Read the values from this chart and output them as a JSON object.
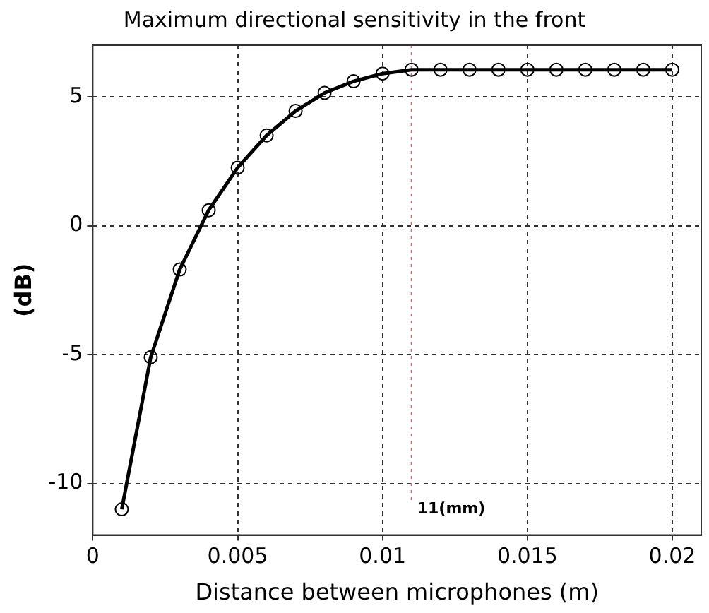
{
  "chart_data": {
    "type": "line",
    "title": "Maximum directional sensitivity in the front",
    "xlabel": "Distance between microphones (m)",
    "ylabel": "(dB)",
    "x": [
      0.001,
      0.002,
      0.003,
      0.004,
      0.005,
      0.006,
      0.007,
      0.008,
      0.009,
      0.01,
      0.011,
      0.012,
      0.013,
      0.014,
      0.015,
      0.016,
      0.017,
      0.018,
      0.019,
      0.02
    ],
    "series": [
      {
        "color": "#000000",
        "values": [
          -11.0,
          -5.1,
          -1.7,
          0.6,
          2.25,
          3.5,
          4.45,
          5.15,
          5.6,
          5.9,
          6.05,
          6.05,
          6.05,
          6.05,
          6.05,
          6.05,
          6.05,
          6.05,
          6.05,
          6.05
        ]
      }
    ],
    "xlim": [
      0,
      0.021
    ],
    "xticks": [
      0,
      0.005,
      0.01,
      0.015,
      0.02
    ],
    "ylim": [
      -12,
      7
    ],
    "yticks": [
      -10,
      -5,
      0,
      5
    ],
    "ref_lines": [
      {
        "axis": "x",
        "value": 0.011,
        "label": "11(mm)",
        "color": "#c87070",
        "line_style": "dotted"
      }
    ],
    "grid": true,
    "legend": false,
    "marker": "circle",
    "line_style": "solid"
  }
}
